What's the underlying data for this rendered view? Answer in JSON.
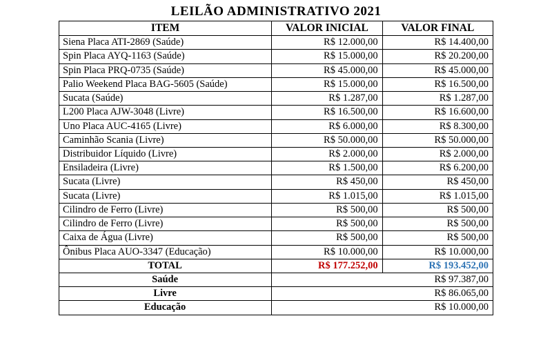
{
  "title": "LEILÃO ADMINISTRATIVO 2021",
  "columns": {
    "item": "ITEM",
    "v1": "VALOR INICIAL",
    "v2": "VALOR FINAL"
  },
  "rows": [
    {
      "item": "Siena Placa ATI-2869 (Saúde)",
      "v1": "R$ 12.000,00",
      "v2": "R$ 14.400,00"
    },
    {
      "item": "Spin Placa AYQ-1163 (Saúde)",
      "v1": "R$ 15.000,00",
      "v2": "R$ 20.200,00"
    },
    {
      "item": "Spin Placa PRQ-0735 (Saúde)",
      "v1": "R$ 45.000,00",
      "v2": "R$ 45.000,00"
    },
    {
      "item": "Palio Weekend Placa BAG-5605 (Saúde)",
      "v1": "R$ 15.000,00",
      "v2": "R$ 16.500,00"
    },
    {
      "item": "Sucata (Saúde)",
      "v1": "R$ 1.287,00",
      "v2": "R$ 1.287,00"
    },
    {
      "item": "L200 Placa AJW-3048 (Livre)",
      "v1": "R$ 16.500,00",
      "v2": "R$ 16.600,00"
    },
    {
      "item": "Uno Placa AUC-4165 (Livre)",
      "v1": "R$ 6.000,00",
      "v2": "R$ 8.300,00"
    },
    {
      "item": "Caminhão Scania (Livre)",
      "v1": "R$ 50.000,00",
      "v2": "R$ 50.000,00"
    },
    {
      "item": "Distribuidor Líquido (Livre)",
      "v1": "R$ 2.000,00",
      "v2": "R$ 2.000,00"
    },
    {
      "item": "Ensiladeira (Livre)",
      "v1": "R$ 1.500,00",
      "v2": "R$ 6.200,00"
    },
    {
      "item": "Sucata (Livre)",
      "v1": "R$ 450,00",
      "v2": "R$ 450,00"
    },
    {
      "item": "Sucata (Livre)",
      "v1": "R$ 1.015,00",
      "v2": "R$ 1.015,00"
    },
    {
      "item": "Cilindro de Ferro (Livre)",
      "v1": "R$ 500,00",
      "v2": "R$ 500,00"
    },
    {
      "item": "Cilindro de Ferro (Livre)",
      "v1": "R$ 500,00",
      "v2": "R$ 500,00"
    },
    {
      "item": "Caixa de Água (Livre)",
      "v1": "R$ 500,00",
      "v2": "R$ 500,00"
    },
    {
      "item": "Ônibus Placa AUO-3347 (Educação)",
      "v1": "R$ 10.000,00",
      "v2": "R$ 10.000,00"
    }
  ],
  "total": {
    "label": "TOTAL",
    "v1": "R$ 177.252,00",
    "v2": "R$ 193.452,00"
  },
  "summary": [
    {
      "label": "Saúde",
      "value": "R$ 97.387,00"
    },
    {
      "label": "Livre",
      "value": "R$ 86.065,00"
    },
    {
      "label": "Educação",
      "value": "R$ 10.000,00"
    }
  ]
}
